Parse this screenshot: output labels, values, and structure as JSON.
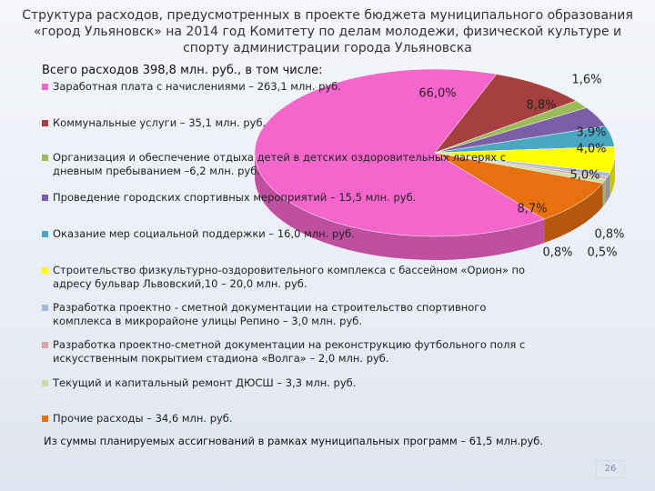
{
  "chart_data": {
    "type": "pie",
    "title": "Структура расходов, предусмотренных в проекте бюджета муниципального образования «город Ульяновск» на 2014 год Комитету по делам молодежи, физической культуре и спорту администрации города Ульяновска",
    "subtitle": "Всего расходов 398,8  млн. руб., в том числе:",
    "categories": [
      "Заработная плата с начислениями – 263,1 млн. руб.",
      "Коммунальные услуги – 35,1 млн. руб.",
      "Организация и обеспечение отдыха детей в детских оздоровительных лагерях с дневным пребыванием –6,2 млн. руб.",
      "Проведение городских спортивных мероприятий – 15,5 млн. руб.",
      "Оказание мер социальной поддержки – 16,0 млн. руб.",
      "Строительство физкультурно-оздоровительного комплекса с бассейном «Орион» по адресу бульвар Львовский,10 – 20,0 млн. руб.",
      "Разработка проектно - сметной документации на строительство спортивного комплекса в микрорайоне улицы Репино – 3,0 млн. руб.",
      "Разработка проектно-сметной документации на реконструкцию футбольного поля с искусственным покрытием стадиона «Волга» – 2,0 млн. руб.",
      "Текущий и капитальный ремонт ДЮСШ – 3,3 млн. руб.",
      "Прочие расходы – 34,6 млн. руб."
    ],
    "values": [
      66.0,
      8.8,
      1.6,
      3.9,
      4.0,
      5.0,
      0.8,
      0.5,
      0.8,
      8.7
    ],
    "value_labels": [
      "66,0%",
      "8,8%",
      "1,6%",
      "3,9%",
      "4,0%",
      "5,0%",
      "0,8%",
      "0,5%",
      "0,8%",
      "8,7%"
    ],
    "colors": [
      "#f466cc",
      "#a5403f",
      "#9bbb59",
      "#7b5ea6",
      "#4aa7c2",
      "#ffff00",
      "#a7b8e0",
      "#dba4a4",
      "#c9dda4",
      "#e8700f"
    ],
    "footnote": "Из суммы планируемых ассигнований в рамках муниципальных программ – 61,5 млн.руб.",
    "page_number": "26"
  }
}
